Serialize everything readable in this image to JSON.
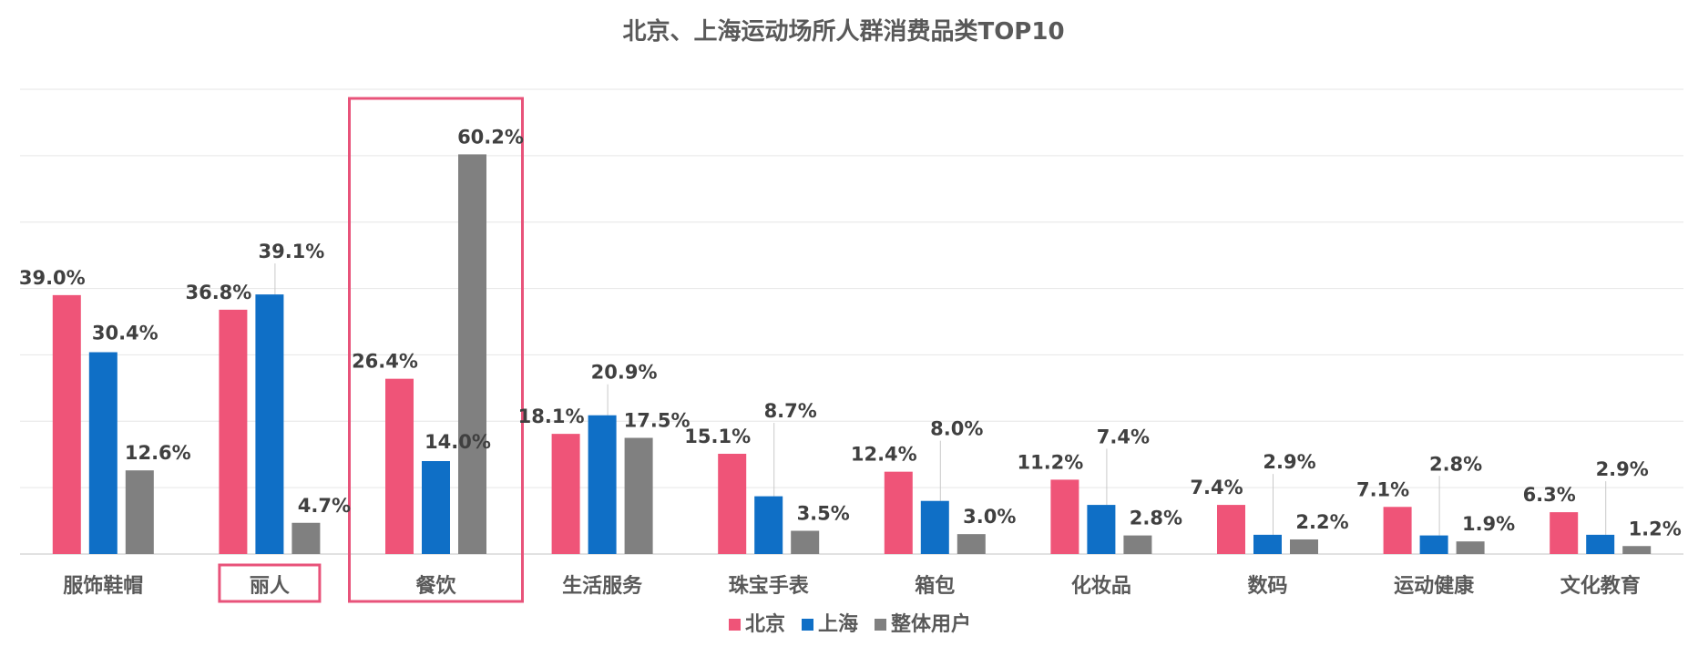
{
  "chart_data": {
    "type": "bar",
    "title": "北京、上海运动场所人群消费品类TOP10",
    "categories": [
      "服饰鞋帽",
      "丽人",
      "餐饮",
      "生活服务",
      "珠宝手表",
      "箱包",
      "化妆品",
      "数码",
      "运动健康",
      "文化教育"
    ],
    "series": [
      {
        "name": "北京",
        "color": "#ef5478",
        "values": [
          39.0,
          36.8,
          26.4,
          18.1,
          15.1,
          12.4,
          11.2,
          7.4,
          7.1,
          6.3
        ],
        "labels": [
          "39.0%",
          "36.8%",
          "26.4%",
          "18.1%",
          "15.1%",
          "12.4%",
          "11.2%",
          "7.4%",
          "7.1%",
          "6.3%"
        ]
      },
      {
        "name": "上海",
        "color": "#0f6fc6",
        "values": [
          30.4,
          39.1,
          14.0,
          20.9,
          8.7,
          8.0,
          7.4,
          2.9,
          2.8,
          2.9
        ],
        "labels": [
          "30.4%",
          "39.1%",
          "14.0%",
          "20.9%",
          "8.7%",
          "8.0%",
          "7.4%",
          "2.9%",
          "2.8%",
          "2.9%"
        ]
      },
      {
        "name": "整体用户",
        "color": "#808080",
        "values": [
          12.6,
          4.7,
          60.2,
          17.5,
          3.5,
          3.0,
          2.8,
          2.2,
          1.9,
          1.2
        ],
        "labels": [
          "12.6%",
          "4.7%",
          "60.2%",
          "17.5%",
          "3.5%",
          "3.0%",
          "2.8%",
          "2.2%",
          "1.9%",
          "1.2%"
        ]
      }
    ],
    "ylim": [
      0,
      70
    ],
    "grid": true,
    "legend": "bottom-center",
    "highlighted_categories": [
      "丽人",
      "餐饮"
    ],
    "highlight_color": "#e8537a",
    "xlabel": "",
    "ylabel": ""
  }
}
